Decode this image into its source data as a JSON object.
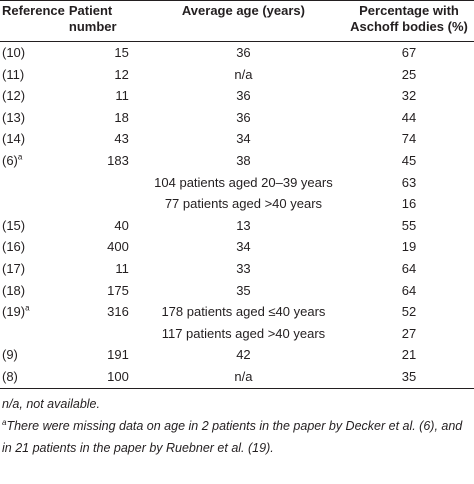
{
  "table": {
    "header": [
      "Reference",
      "Patient number",
      "Average age (years)",
      "Percentage with Aschoff bodies (%)"
    ],
    "rows": [
      {
        "ref": "(10)",
        "sup": null,
        "patients": "15",
        "age": "36",
        "pct": "67"
      },
      {
        "ref": "(11)",
        "sup": null,
        "patients": "12",
        "age": "n/a",
        "pct": "25"
      },
      {
        "ref": "(12)",
        "sup": null,
        "patients": "11",
        "age": "36",
        "pct": "32"
      },
      {
        "ref": "(13)",
        "sup": null,
        "patients": "18",
        "age": "36",
        "pct": "44"
      },
      {
        "ref": "(14)",
        "sup": null,
        "patients": "43",
        "age": "34",
        "pct": "74"
      },
      {
        "ref": "(6)",
        "sup": "a",
        "patients": "183",
        "age": "38",
        "pct": "45"
      },
      {
        "ref": null,
        "sup": null,
        "patients": null,
        "age": "104 patients aged 20–39 years",
        "pct": "63"
      },
      {
        "ref": null,
        "sup": null,
        "patients": null,
        "age": "77 patients aged >40 years",
        "pct": "16"
      },
      {
        "ref": "(15)",
        "sup": null,
        "patients": "40",
        "age": "13",
        "pct": "55"
      },
      {
        "ref": "(16)",
        "sup": null,
        "patients": "400",
        "age": "34",
        "pct": "19"
      },
      {
        "ref": "(17)",
        "sup": null,
        "patients": "11",
        "age": "33",
        "pct": "64"
      },
      {
        "ref": "(18)",
        "sup": null,
        "patients": "175",
        "age": "35",
        "pct": "64"
      },
      {
        "ref": "(19)",
        "sup": "a",
        "patients": "316",
        "age": "178 patients aged ≤40 years",
        "pct": "52"
      },
      {
        "ref": null,
        "sup": null,
        "patients": null,
        "age": "117 patients aged >40 years",
        "pct": "27"
      },
      {
        "ref": "(9)",
        "sup": null,
        "patients": "191",
        "age": "42",
        "pct": "21"
      },
      {
        "ref": "(8)",
        "sup": null,
        "patients": "100",
        "age": "n/a",
        "pct": "35"
      }
    ]
  },
  "footnotes": {
    "na": "n/a, not available.",
    "a_mark": "a",
    "a": "There were missing data on age in 2 patients in the paper by Decker et al. (6), and in 21 patients in the paper by Ruebner et al. (19)."
  }
}
